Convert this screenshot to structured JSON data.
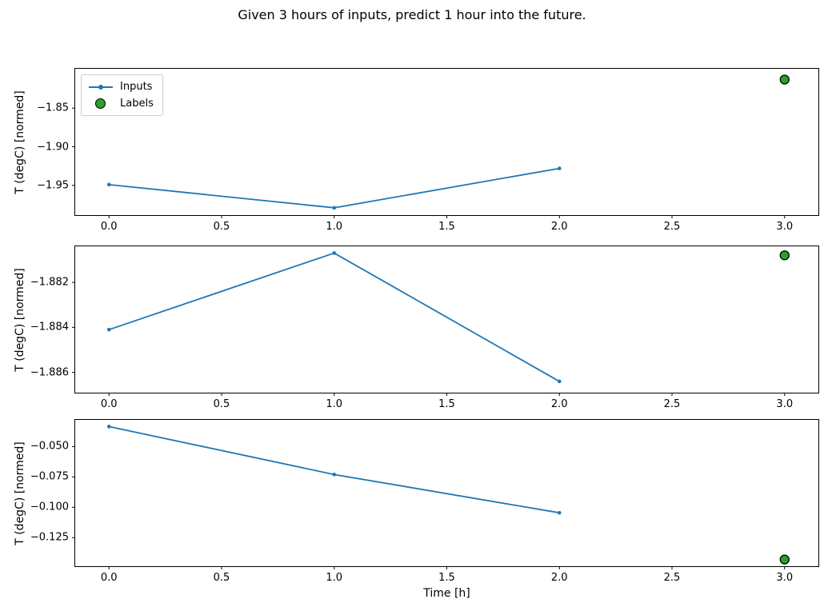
{
  "title": "Given 3 hours of inputs, predict 1 hour into the future.",
  "colors": {
    "inputs_line": "#1f77b4",
    "labels_marker": "#2ca02c",
    "marker_edge": "#000000",
    "spine": "#000000",
    "legend_border": "#cccccc"
  },
  "chart_data": [
    {
      "type": "line",
      "title": "",
      "xlabel": "",
      "ylabel": "T (degC) [normed]",
      "xlim": [
        -0.15,
        3.15
      ],
      "ylim": [
        -1.9885,
        -1.799
      ],
      "grid": false,
      "legend_position": "upper left",
      "x_ticks": [
        0.0,
        0.5,
        1.0,
        1.5,
        2.0,
        2.5,
        3.0
      ],
      "x_tick_labels": [
        "0.0",
        "0.5",
        "1.0",
        "1.5",
        "2.0",
        "2.5",
        "3.0"
      ],
      "y_ticks": [
        -1.85,
        -1.9,
        -1.95
      ],
      "y_tick_labels": [
        "−1.85",
        "−1.90",
        "−1.95"
      ],
      "series": [
        {
          "name": "Inputs",
          "type": "line",
          "color": "#1f77b4",
          "x": [
            0,
            1,
            2
          ],
          "y": [
            -1.949,
            -1.979,
            -1.928
          ]
        },
        {
          "name": "Labels",
          "type": "scatter",
          "color": "#2ca02c",
          "edge_color": "#000000",
          "x": [
            3
          ],
          "y": [
            -1.813
          ]
        }
      ]
    },
    {
      "type": "line",
      "title": "",
      "xlabel": "",
      "ylabel": "T (degC) [normed]",
      "xlim": [
        -0.15,
        3.15
      ],
      "ylim": [
        -1.8869,
        -1.8804
      ],
      "grid": false,
      "legend_position": null,
      "x_ticks": [
        0.0,
        0.5,
        1.0,
        1.5,
        2.0,
        2.5,
        3.0
      ],
      "x_tick_labels": [
        "0.0",
        "0.5",
        "1.0",
        "1.5",
        "2.0",
        "2.5",
        "3.0"
      ],
      "y_ticks": [
        -1.882,
        -1.884,
        -1.886
      ],
      "y_tick_labels": [
        "−1.882",
        "−1.884",
        "−1.886"
      ],
      "series": [
        {
          "name": "Inputs",
          "type": "line",
          "color": "#1f77b4",
          "x": [
            0,
            1,
            2
          ],
          "y": [
            -1.8841,
            -1.8807,
            -1.8864
          ]
        },
        {
          "name": "Labels",
          "type": "scatter",
          "color": "#2ca02c",
          "edge_color": "#000000",
          "x": [
            3
          ],
          "y": [
            -1.8808
          ]
        }
      ]
    },
    {
      "type": "line",
      "title": "",
      "xlabel": "Time [h]",
      "ylabel": "T (degC) [normed]",
      "xlim": [
        -0.15,
        3.15
      ],
      "ylim": [
        -0.1485,
        -0.028
      ],
      "grid": false,
      "legend_position": null,
      "x_ticks": [
        0.0,
        0.5,
        1.0,
        1.5,
        2.0,
        2.5,
        3.0
      ],
      "x_tick_labels": [
        "0.0",
        "0.5",
        "1.0",
        "1.5",
        "2.0",
        "2.5",
        "3.0"
      ],
      "y_ticks": [
        -0.05,
        -0.075,
        -0.1,
        -0.125
      ],
      "y_tick_labels": [
        "−0.050",
        "−0.075",
        "−0.100",
        "−0.125"
      ],
      "series": [
        {
          "name": "Inputs",
          "type": "line",
          "color": "#1f77b4",
          "x": [
            0,
            1,
            2
          ],
          "y": [
            -0.0335,
            -0.073,
            -0.1045
          ]
        },
        {
          "name": "Labels",
          "type": "scatter",
          "color": "#2ca02c",
          "edge_color": "#000000",
          "x": [
            3
          ],
          "y": [
            -0.143
          ]
        }
      ]
    }
  ]
}
